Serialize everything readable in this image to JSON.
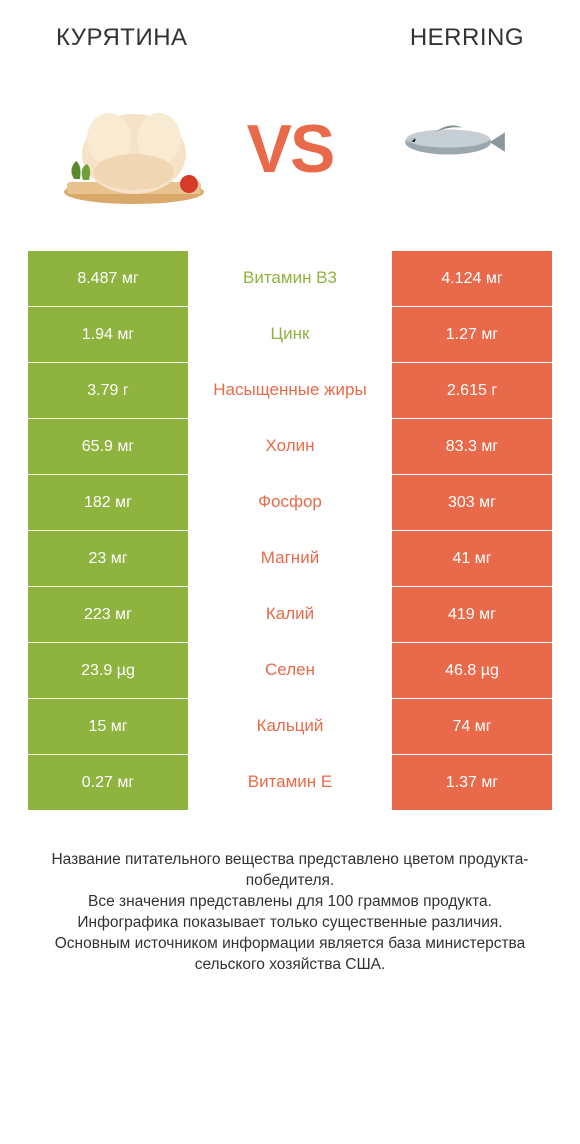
{
  "colors": {
    "green": "#8fb33f",
    "orange_bar": "#e96a4a",
    "green_text": "#8fb33f",
    "orange_text": "#e96a4a",
    "body_text": "#333333"
  },
  "header": {
    "left": "КУРЯТИНА",
    "right": "HERRING"
  },
  "vs_label": "VS",
  "rows": [
    {
      "left": "8.487 мг",
      "mid": "Витамин B3",
      "right": "4.124 мг",
      "winner": "left"
    },
    {
      "left": "1.94 мг",
      "mid": "Цинк",
      "right": "1.27 мг",
      "winner": "left"
    },
    {
      "left": "3.79 г",
      "mid": "Насыщенные жиры",
      "right": "2.615 г",
      "winner": "right"
    },
    {
      "left": "65.9 мг",
      "mid": "Холин",
      "right": "83.3 мг",
      "winner": "right"
    },
    {
      "left": "182 мг",
      "mid": "Фосфор",
      "right": "303 мг",
      "winner": "right"
    },
    {
      "left": "23 мг",
      "mid": "Магний",
      "right": "41 мг",
      "winner": "right"
    },
    {
      "left": "223 мг",
      "mid": "Калий",
      "right": "419 мг",
      "winner": "right"
    },
    {
      "left": "23.9 µg",
      "mid": "Селен",
      "right": "46.8 µg",
      "winner": "right"
    },
    {
      "left": "15 мг",
      "mid": "Кальций",
      "right": "74 мг",
      "winner": "right"
    },
    {
      "left": "0.27 мг",
      "mid": "Витамин E",
      "right": "1.37 мг",
      "winner": "right"
    }
  ],
  "footer_lines": [
    "Название питательного вещества представлено цветом продукта-победителя.",
    "Все значения представлены для 100 граммов продукта.",
    "Инфографика показывает только существенные различия.",
    "Основным источником информации является база министерства сельского хозяйства США."
  ]
}
